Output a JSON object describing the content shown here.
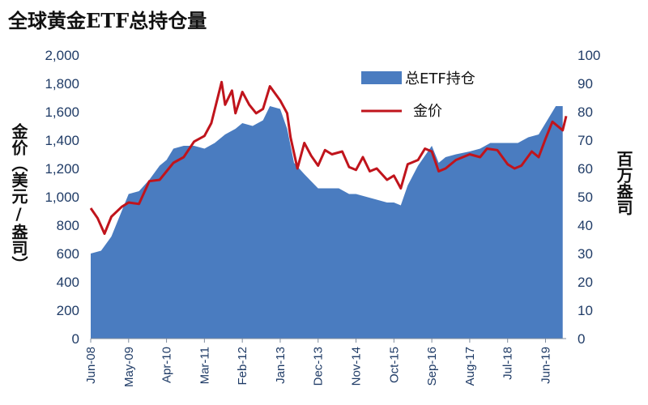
{
  "title": "全球黄金ETF总持仓量",
  "chart_data": {
    "type": "area+line",
    "title": "全球黄金ETF总持仓量",
    "ylabel_left": "金价（美元/盎司）",
    "ylabel_right": "百万盎司",
    "left_axis": {
      "ylim": [
        0,
        2000
      ],
      "ticks": [
        "0",
        "200",
        "400",
        "600",
        "800",
        "1,000",
        "1,200",
        "1,400",
        "1,600",
        "1,800",
        "2,000"
      ]
    },
    "right_axis": {
      "ylim": [
        0,
        100
      ],
      "ticks": [
        "0",
        "10",
        "20",
        "30",
        "40",
        "50",
        "60",
        "70",
        "80",
        "90",
        "100"
      ]
    },
    "x_tick_labels": [
      "Jun-08",
      "May-09",
      "Apr-10",
      "Mar-11",
      "Feb-12",
      "Jan-13",
      "Dec-13",
      "Nov-14",
      "Oct-15",
      "Sep-16",
      "Aug-17",
      "Jul-18",
      "Jun-19"
    ],
    "legend": {
      "position": "top-center"
    },
    "colors": {
      "holdings_fill": "#4a7cc0",
      "gold_line": "#c0141c",
      "axis_text": "#1f3b66"
    },
    "series": [
      {
        "name": "总ETF持仓",
        "type": "area",
        "axis": "right",
        "points": [
          [
            "Jun-08",
            30
          ],
          [
            "Sep-08",
            31
          ],
          [
            "Dec-08",
            36
          ],
          [
            "Mar-09",
            45
          ],
          [
            "May-09",
            51
          ],
          [
            "Aug-09",
            52
          ],
          [
            "Nov-09",
            56
          ],
          [
            "Feb-10",
            61
          ],
          [
            "Apr-10",
            63
          ],
          [
            "Jun-10",
            67
          ],
          [
            "Sep-10",
            68
          ],
          [
            "Dec-10",
            68
          ],
          [
            "Mar-11",
            67
          ],
          [
            "Jun-11",
            69
          ],
          [
            "Sep-11",
            72
          ],
          [
            "Dec-11",
            74
          ],
          [
            "Feb-12",
            76
          ],
          [
            "May-12",
            75
          ],
          [
            "Aug-12",
            77
          ],
          [
            "Oct-12",
            82
          ],
          [
            "Jan-13",
            81
          ],
          [
            "Mar-13",
            74
          ],
          [
            "May-13",
            62
          ],
          [
            "Aug-13",
            58
          ],
          [
            "Dec-13",
            53
          ],
          [
            "Mar-14",
            53
          ],
          [
            "Jun-14",
            53
          ],
          [
            "Sep-14",
            51
          ],
          [
            "Nov-14",
            51
          ],
          [
            "Feb-15",
            50
          ],
          [
            "May-15",
            49
          ],
          [
            "Aug-15",
            48
          ],
          [
            "Oct-15",
            48
          ],
          [
            "Dec-15",
            47
          ],
          [
            "Feb-16",
            54
          ],
          [
            "May-16",
            61
          ],
          [
            "Sep-16",
            68
          ],
          [
            "Nov-16",
            62
          ],
          [
            "Jan-17",
            64
          ],
          [
            "Apr-17",
            65
          ],
          [
            "Aug-17",
            66
          ],
          [
            "Nov-17",
            67
          ],
          [
            "Feb-18",
            69
          ],
          [
            "May-18",
            69
          ],
          [
            "Jul-18",
            69
          ],
          [
            "Oct-18",
            69
          ],
          [
            "Jan-19",
            71
          ],
          [
            "Apr-19",
            72
          ],
          [
            "Jun-19",
            76
          ],
          [
            "Sep-19",
            82
          ],
          [
            "Nov-19",
            82
          ]
        ]
      },
      {
        "name": "金价",
        "type": "line",
        "axis": "left",
        "points": [
          [
            "Jun-08",
            920
          ],
          [
            "Aug-08",
            850
          ],
          [
            "Oct-08",
            740
          ],
          [
            "Dec-08",
            860
          ],
          [
            "Mar-09",
            930
          ],
          [
            "May-09",
            960
          ],
          [
            "Aug-09",
            950
          ],
          [
            "Nov-09",
            1110
          ],
          [
            "Feb-10",
            1120
          ],
          [
            "Apr-10",
            1180
          ],
          [
            "Jun-10",
            1240
          ],
          [
            "Sep-10",
            1280
          ],
          [
            "Dec-10",
            1390
          ],
          [
            "Mar-11",
            1430
          ],
          [
            "May-11",
            1520
          ],
          [
            "Aug-11",
            1810
          ],
          [
            "Sep-11",
            1650
          ],
          [
            "Nov-11",
            1750
          ],
          [
            "Dec-11",
            1590
          ],
          [
            "Feb-12",
            1740
          ],
          [
            "Apr-12",
            1650
          ],
          [
            "Jun-12",
            1590
          ],
          [
            "Aug-12",
            1620
          ],
          [
            "Oct-12",
            1780
          ],
          [
            "Jan-13",
            1680
          ],
          [
            "Mar-13",
            1590
          ],
          [
            "Apr-13",
            1420
          ],
          [
            "Jun-13",
            1200
          ],
          [
            "Aug-13",
            1380
          ],
          [
            "Oct-13",
            1290
          ],
          [
            "Dec-13",
            1220
          ],
          [
            "Feb-14",
            1330
          ],
          [
            "Apr-14",
            1300
          ],
          [
            "Jul-14",
            1320
          ],
          [
            "Sep-14",
            1210
          ],
          [
            "Nov-14",
            1190
          ],
          [
            "Jan-15",
            1280
          ],
          [
            "Mar-15",
            1180
          ],
          [
            "May-15",
            1200
          ],
          [
            "Aug-15",
            1120
          ],
          [
            "Oct-15",
            1150
          ],
          [
            "Dec-15",
            1060
          ],
          [
            "Feb-16",
            1230
          ],
          [
            "May-16",
            1260
          ],
          [
            "Jul-16",
            1340
          ],
          [
            "Sep-16",
            1320
          ],
          [
            "Nov-16",
            1180
          ],
          [
            "Jan-17",
            1200
          ],
          [
            "Apr-17",
            1260
          ],
          [
            "Aug-17",
            1300
          ],
          [
            "Nov-17",
            1280
          ],
          [
            "Jan-18",
            1340
          ],
          [
            "Apr-18",
            1330
          ],
          [
            "Jul-18",
            1230
          ],
          [
            "Sep-18",
            1200
          ],
          [
            "Nov-18",
            1220
          ],
          [
            "Feb-19",
            1320
          ],
          [
            "Apr-19",
            1280
          ],
          [
            "Jun-19",
            1410
          ],
          [
            "Aug-19",
            1530
          ],
          [
            "Sep-19",
            1510
          ],
          [
            "Nov-19",
            1470
          ],
          [
            "Dec-19",
            1570
          ]
        ]
      }
    ]
  }
}
